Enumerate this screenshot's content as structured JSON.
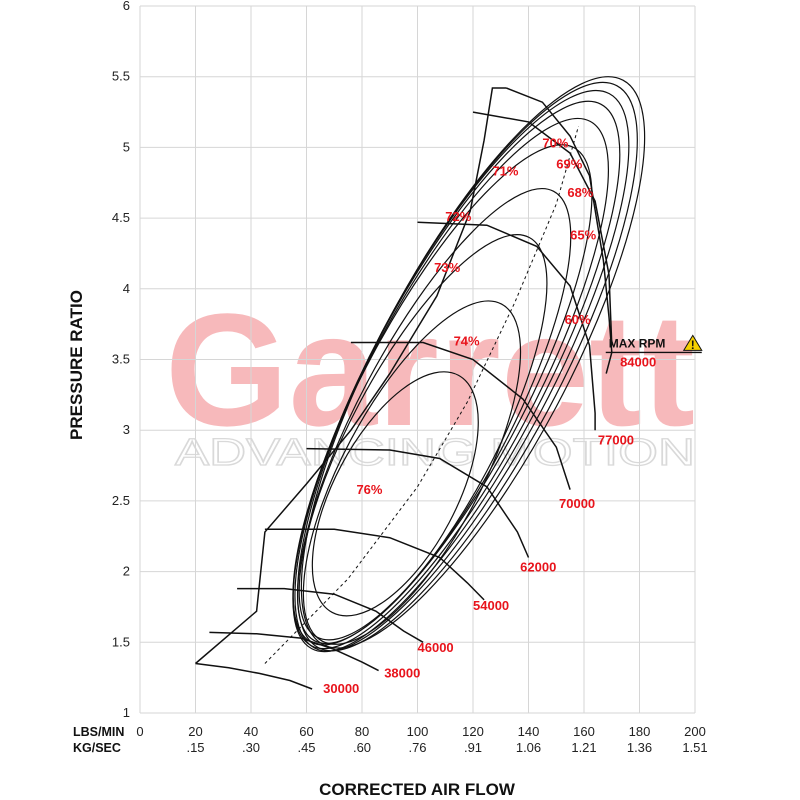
{
  "chart_data": {
    "type": "line",
    "title": "",
    "watermark": {
      "brand": "Garrett",
      "tagline": "ADVANCING MOTION",
      "brand_color": "#f7b9bb"
    },
    "xlabel": "CORRECTED AIR FLOW",
    "ylabel": "PRESSURE RATIO",
    "xlim": [
      0,
      200
    ],
    "ylim": [
      1,
      6
    ],
    "grid": true,
    "x_rows": [
      {
        "label": "LBS/MIN",
        "ticks": [
          "0",
          "20",
          "40",
          "60",
          "80",
          "100",
          "120",
          "140",
          "160",
          "180",
          "200"
        ]
      },
      {
        "label": "KG/SEC",
        "ticks": [
          "",
          ".15",
          ".30",
          ".45",
          ".60",
          ".76",
          ".91",
          "1.06",
          "1.21",
          "1.36",
          "1.51"
        ]
      }
    ],
    "y_ticks": [
      "1",
      "1.5",
      "2",
      "2.5",
      "3",
      "3.5",
      "4",
      "4.5",
      "5",
      "5.5",
      "6"
    ],
    "annotation_color": "#e8141c",
    "surge_line": [
      [
        20,
        1.35
      ],
      [
        42,
        1.72
      ],
      [
        45,
        2.28
      ],
      [
        60,
        2.62
      ],
      [
        76,
        3.0
      ],
      [
        90,
        3.4
      ],
      [
        107,
        3.95
      ],
      [
        119,
        4.55
      ],
      [
        124,
        5.05
      ],
      [
        127,
        5.42
      ],
      [
        132,
        5.42
      ]
    ],
    "choke_line": [
      [
        132,
        5.42
      ],
      [
        145,
        5.32
      ],
      [
        155,
        5.08
      ],
      [
        162,
        4.8
      ],
      [
        167,
        4.2
      ],
      [
        169,
        3.8
      ],
      [
        170,
        3.55
      ],
      [
        168,
        3.4
      ]
    ],
    "speed_lines": [
      {
        "rpm": "30000",
        "points": [
          [
            20,
            1.35
          ],
          [
            32,
            1.32
          ],
          [
            43,
            1.28
          ],
          [
            54,
            1.23
          ],
          [
            62,
            1.17
          ]
        ],
        "label_at": [
          66,
          1.14
        ]
      },
      {
        "rpm": "38000",
        "points": [
          [
            25,
            1.57
          ],
          [
            42,
            1.56
          ],
          [
            58,
            1.53
          ],
          [
            70,
            1.45
          ],
          [
            80,
            1.36
          ],
          [
            86,
            1.3
          ]
        ],
        "label_at": [
          88,
          1.25
        ]
      },
      {
        "rpm": "46000",
        "points": [
          [
            35,
            1.88
          ],
          [
            52,
            1.88
          ],
          [
            70,
            1.84
          ],
          [
            85,
            1.72
          ],
          [
            95,
            1.58
          ],
          [
            102,
            1.5
          ]
        ],
        "label_at": [
          100,
          1.43
        ]
      },
      {
        "rpm": "54000",
        "points": [
          [
            45,
            2.3
          ],
          [
            70,
            2.3
          ],
          [
            90,
            2.24
          ],
          [
            108,
            2.1
          ],
          [
            118,
            1.92
          ],
          [
            124,
            1.8
          ]
        ],
        "label_at": [
          120,
          1.73
        ]
      },
      {
        "rpm": "62000",
        "points": [
          [
            60,
            2.87
          ],
          [
            90,
            2.86
          ],
          [
            108,
            2.8
          ],
          [
            125,
            2.6
          ],
          [
            136,
            2.28
          ],
          [
            140,
            2.1
          ]
        ],
        "label_at": [
          137,
          2.0
        ]
      },
      {
        "rpm": "70000",
        "points": [
          [
            76,
            3.62
          ],
          [
            102,
            3.62
          ],
          [
            120,
            3.5
          ],
          [
            138,
            3.22
          ],
          [
            150,
            2.88
          ],
          [
            155,
            2.58
          ]
        ],
        "label_at": [
          151,
          2.45
        ]
      },
      {
        "rpm": "77000",
        "points": [
          [
            100,
            4.47
          ],
          [
            125,
            4.45
          ],
          [
            143,
            4.3
          ],
          [
            155,
            4.02
          ],
          [
            162,
            3.6
          ],
          [
            164,
            3.12
          ],
          [
            164,
            3.0
          ]
        ],
        "label_at": [
          165,
          2.9
        ]
      },
      {
        "rpm": "84000",
        "points": [
          [
            120,
            5.25
          ],
          [
            140,
            5.18
          ],
          [
            155,
            4.96
          ],
          [
            164,
            4.62
          ],
          [
            169,
            4.1
          ],
          [
            170,
            3.6
          ]
        ],
        "label_at": [
          173,
          3.45
        ]
      }
    ],
    "efficiency_islands": [
      {
        "label": "76%",
        "rx": 22,
        "ry": 0.95,
        "cx": 92,
        "cy": 2.55,
        "label_at": [
          78,
          2.55
        ]
      },
      {
        "label": "74%",
        "rx": 25,
        "ry": 1.35,
        "cx": 98,
        "cy": 2.7,
        "label_at": [
          113,
          3.6
        ]
      },
      {
        "label": "73%",
        "rx": 26,
        "ry": 1.6,
        "cx": 102,
        "cy": 2.95,
        "label_at": [
          106,
          4.12
        ]
      },
      {
        "label": "72%",
        "rx": 27,
        "ry": 1.8,
        "cx": 106,
        "cy": 3.1,
        "label_at": [
          110,
          4.48
        ]
      },
      {
        "label": "71%",
        "rx": 29,
        "ry": 1.98,
        "cx": 109,
        "cy": 3.25,
        "label_at": [
          127,
          4.8
        ]
      },
      {
        "label": "70%",
        "rx": 30,
        "ry": 2.1,
        "cx": 112,
        "cy": 3.33,
        "label_at": [
          145,
          5.0
        ]
      },
      {
        "label": "69%",
        "rx": 31,
        "ry": 2.18,
        "cx": 114,
        "cy": 3.38,
        "label_at": [
          150,
          4.85
        ]
      },
      {
        "label": "68%",
        "rx": 32,
        "ry": 2.22,
        "cx": 116,
        "cy": 3.42,
        "label_at": [
          154,
          4.65
        ]
      },
      {
        "label": "65%",
        "rx": 33,
        "ry": 2.25,
        "cx": 118,
        "cy": 3.45,
        "label_at": [
          155,
          4.35
        ]
      },
      {
        "label": "60%",
        "rx": 34,
        "ry": 2.26,
        "cx": 120,
        "cy": 3.48,
        "label_at": [
          153,
          3.75
        ]
      }
    ],
    "max_rpm": {
      "label": "MAX RPM",
      "rpm": "84000",
      "warning_icon": "warning-triangle-icon",
      "at": [
        170,
        3.55
      ]
    }
  }
}
